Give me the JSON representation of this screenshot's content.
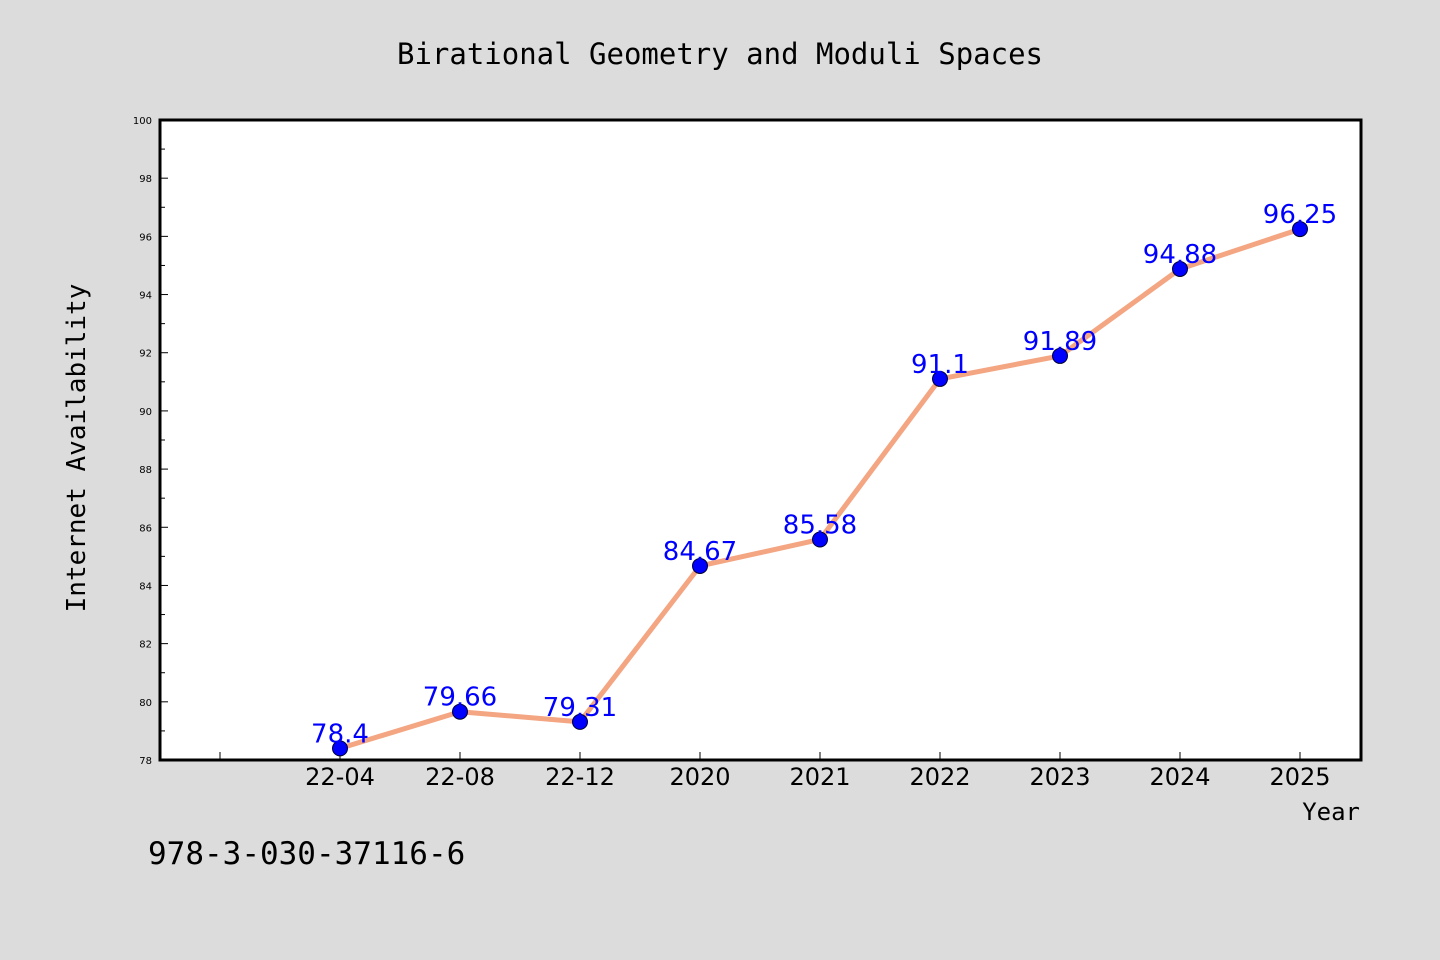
{
  "chart_data": {
    "type": "line",
    "title": "Birational Geometry and Moduli Spaces",
    "xlabel": "Year",
    "ylabel": "Internet Availability",
    "categories": [
      "22-04",
      "22-08",
      "22-12",
      "2020",
      "2021",
      "2022",
      "2023",
      "2024",
      "2025"
    ],
    "values": [
      78.4,
      79.66,
      79.31,
      84.67,
      85.58,
      91.1,
      91.89,
      94.88,
      96.25
    ],
    "data_labels": [
      "78.4",
      "79.66",
      "79.31",
      "84.67",
      "85.58",
      "91.1",
      "91.89",
      "94.88",
      "96.25"
    ],
    "ylim": [
      78,
      100
    ],
    "yticks": [
      78,
      80,
      82,
      84,
      86,
      88,
      90,
      92,
      94,
      96,
      98,
      100
    ],
    "grid": false,
    "line_color": "#f4a582",
    "marker_color": "#0000ff",
    "label_color": "#0000ff",
    "background": "#dcdcdc",
    "plot_background": "#ffffff"
  },
  "annotation": "978-3-030-37116-6"
}
